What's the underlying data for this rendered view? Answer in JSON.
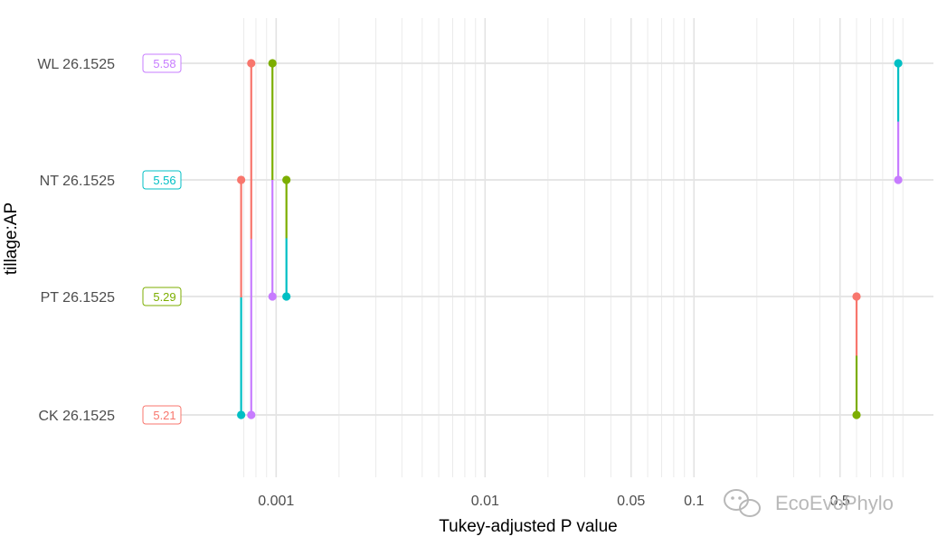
{
  "chart_data": {
    "type": "scatter",
    "xlabel": "Tukey-adjusted P value",
    "ylabel": "tillage:AP",
    "x_scale": "log",
    "xlim": [
      0.00035,
      1.4
    ],
    "x_ticks": [
      {
        "value": 0.001,
        "label": "0.001"
      },
      {
        "value": 0.01,
        "label": "0.01"
      },
      {
        "value": 0.05,
        "label": "0.05"
      },
      {
        "value": 0.1,
        "label": "0.1"
      },
      {
        "value": 0.5,
        "label": "0.5"
      }
    ],
    "x_minor_ticks": [
      0.0007,
      0.0008,
      0.0009,
      0.002,
      0.003,
      0.004,
      0.005,
      0.006,
      0.007,
      0.008,
      0.009,
      0.02,
      0.03,
      0.04,
      0.06,
      0.07,
      0.08,
      0.09,
      0.2,
      0.3,
      0.4,
      0.6,
      0.7,
      0.8,
      0.9,
      1.0
    ],
    "grid": true,
    "legend": "none",
    "colors": {
      "CK": "#F8766D",
      "PT": "#7CAE00",
      "NT": "#00BFC4",
      "WL": "#C77CFF"
    },
    "categories": [
      {
        "key": "CK",
        "label": "CK 26.1525",
        "value": "5.21"
      },
      {
        "key": "PT",
        "label": "PT 26.1525",
        "value": "5.29"
      },
      {
        "key": "NT",
        "label": "NT 26.1525",
        "value": "5.56"
      },
      {
        "key": "WL",
        "label": "WL 26.1525",
        "value": "5.58"
      }
    ],
    "comparisons": [
      {
        "from": "CK",
        "to": "PT",
        "p": 0.6
      },
      {
        "from": "CK",
        "to": "NT",
        "p": 0.00068
      },
      {
        "from": "CK",
        "to": "WL",
        "p": 0.00076
      },
      {
        "from": "PT",
        "to": "NT",
        "p": 0.00112
      },
      {
        "from": "PT",
        "to": "WL",
        "p": 0.00096
      },
      {
        "from": "NT",
        "to": "WL",
        "p": 0.95
      }
    ]
  },
  "watermark": {
    "text": "EcoEvoPhylo",
    "icon": "wechat-icon"
  }
}
